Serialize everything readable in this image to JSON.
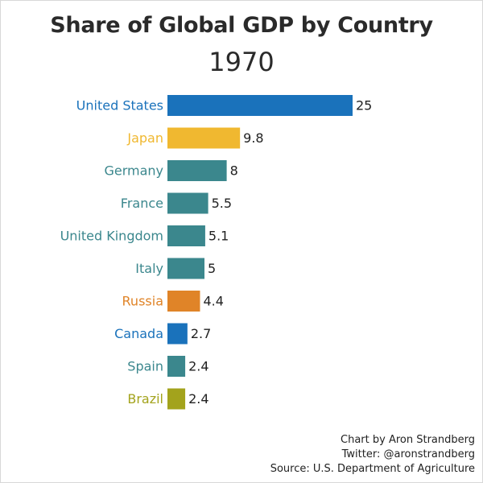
{
  "chart_data": {
    "type": "bar",
    "orientation": "horizontal",
    "title": "Share of Global GDP by Country",
    "subtitle": "1970",
    "categories": [
      "United States",
      "Japan",
      "Germany",
      "France",
      "United Kingdom",
      "Italy",
      "Russia",
      "Canada",
      "Spain",
      "Brazil"
    ],
    "values": [
      25,
      9.8,
      8,
      5.5,
      5.1,
      5,
      4.4,
      2.7,
      2.4,
      2.4
    ],
    "value_labels": [
      "25",
      "9.8",
      "8",
      "5.5",
      "5.1",
      "5",
      "4.4",
      "2.7",
      "2.4",
      "2.4"
    ],
    "colors": [
      "#1a72bb",
      "#f0b830",
      "#3b878d",
      "#3b878d",
      "#3b878d",
      "#3b878d",
      "#e08428",
      "#1a72bb",
      "#3b878d",
      "#a3a31c"
    ],
    "xlim": [
      0,
      25
    ],
    "grid": false,
    "legend": false
  },
  "credits": {
    "line1": "Chart by Aron Strandberg",
    "line2": "Twitter: @aronstrandberg",
    "line3": "Source: U.S. Department of Agriculture"
  }
}
